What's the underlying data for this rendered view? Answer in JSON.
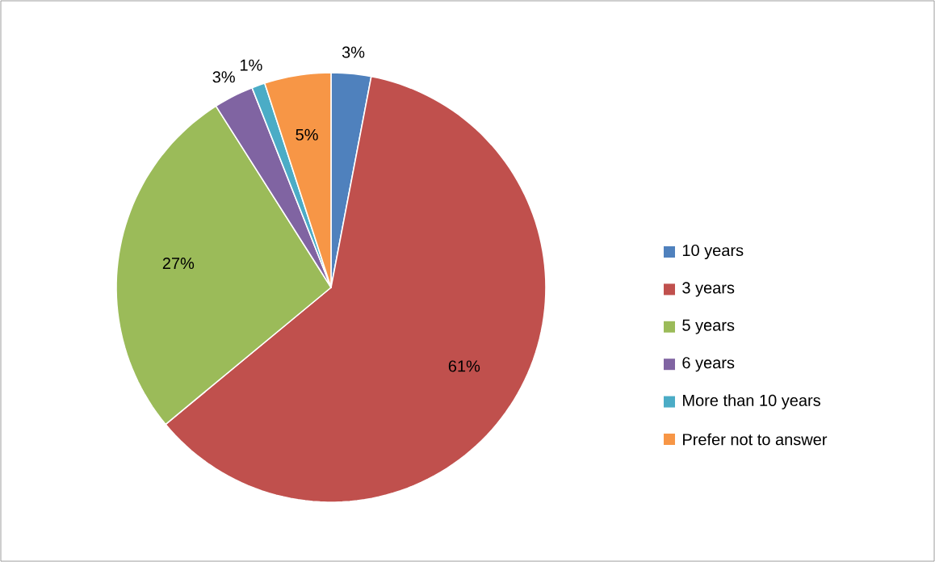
{
  "chart_data": {
    "type": "pie",
    "categories": [
      "10 years",
      "3 years",
      "5 years",
      "6 years",
      "More than 10 years",
      "Prefer not to answer"
    ],
    "values": [
      3,
      61,
      27,
      3,
      1,
      5
    ],
    "value_labels": [
      "3%",
      "61%",
      "27%",
      "3%",
      "1%",
      "5%"
    ],
    "colors": [
      "#4f81bd",
      "#c0504d",
      "#9bbb59",
      "#8064a2",
      "#4bacc6",
      "#f79646"
    ],
    "legend": "right"
  }
}
